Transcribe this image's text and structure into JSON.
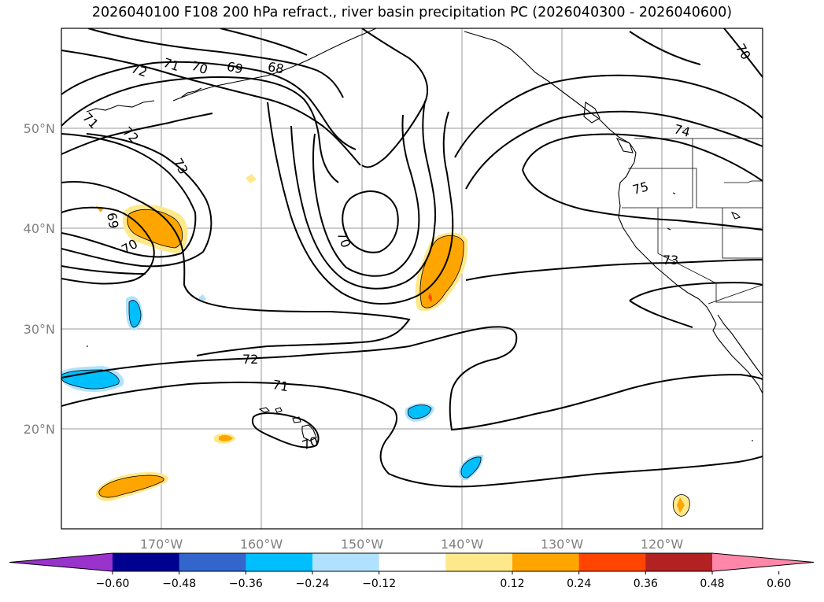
{
  "title": "2026040100 F108 200 hPa refract., river basin precipitation PC (2026040300 - 2026040600)",
  "map": {
    "projection": "cylindrical",
    "lon_range": [
      -180,
      -110
    ],
    "lat_range": [
      10,
      60
    ],
    "lat_ticks": [
      "20°N",
      "30°N",
      "40°N",
      "50°N"
    ],
    "lon_ticks": [
      "170°W",
      "160°W",
      "150°W",
      "140°W",
      "130°W",
      "120°W"
    ],
    "gridlines": true
  },
  "contour_labels": [
    "72",
    "71",
    "70",
    "69",
    "68",
    "71",
    "72",
    "73",
    "69",
    "70",
    "70",
    "72",
    "71",
    "70",
    "74",
    "75",
    "73",
    "70"
  ],
  "colorbar": {
    "ticks": [
      "−0.60",
      "−0.48",
      "−0.36",
      "−0.24",
      "−0.12",
      "0.12",
      "0.24",
      "0.36",
      "0.48",
      "0.60"
    ],
    "colors": [
      "#9933cc",
      "#000090",
      "#3366cc",
      "#00bfff",
      "#b0e2ff",
      "#ffffff",
      "#ffe88a",
      "#ffa500",
      "#ff4500",
      "#b22222",
      "#ff88aa"
    ],
    "extend": "both"
  }
}
